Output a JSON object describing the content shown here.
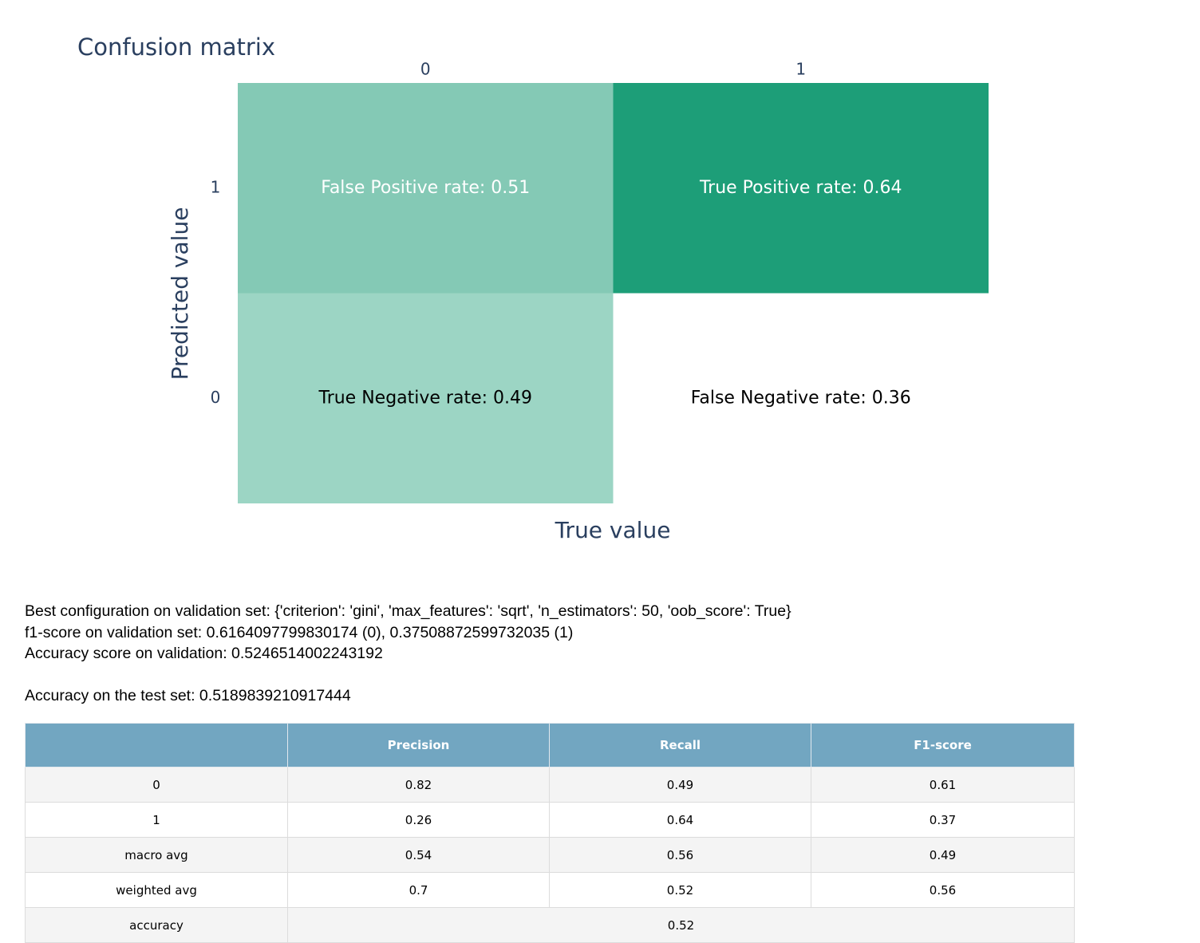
{
  "chart_data": {
    "type": "heatmap",
    "title": "Confusion matrix",
    "xlabel": "True value",
    "ylabel": "Predicted value",
    "x_categories": [
      "0",
      "1"
    ],
    "y_categories": [
      "1",
      "0"
    ],
    "cells": [
      {
        "true": "0",
        "predicted": "1",
        "label": "False Positive rate: 0.51",
        "value": 0.51,
        "color": "#84c9b5",
        "text_color": "#ffffff"
      },
      {
        "true": "1",
        "predicted": "1",
        "label": "True Positive rate: 0.64",
        "value": 0.64,
        "color": "#1d9e78",
        "text_color": "#ffffff"
      },
      {
        "true": "0",
        "predicted": "0",
        "label": "True Negative rate: 0.49",
        "value": 0.49,
        "color": "#9cd5c4",
        "text_color": "#000000"
      },
      {
        "true": "1",
        "predicted": "0",
        "label": "False Negative rate: 0.36",
        "value": 0.36,
        "color": "#ffffff",
        "text_color": "#000000"
      }
    ]
  },
  "info": {
    "best_config": "Best configuration on validation set: {'criterion': 'gini', 'max_features': 'sqrt', 'n_estimators': 50, 'oob_score': True}",
    "f1_validation": "f1-score on validation set: 0.6164097799830174 (0), 0.37508872599732035 (1)",
    "accuracy_validation": "Accuracy score on validation: 0.5246514002243192",
    "accuracy_test": "Accuracy on the test set: 0.5189839210917444"
  },
  "report": {
    "headers": [
      "",
      "Precision",
      "Recall",
      "F1-score"
    ],
    "rows": [
      [
        "0",
        "0.82",
        "0.49",
        "0.61"
      ],
      [
        "1",
        "0.26",
        "0.64",
        "0.37"
      ],
      [
        "macro avg",
        "0.54",
        "0.56",
        "0.49"
      ],
      [
        "weighted avg",
        "0.7",
        "0.52",
        "0.56"
      ]
    ],
    "accuracy_row": {
      "label": "accuracy",
      "value": "0.52"
    }
  }
}
